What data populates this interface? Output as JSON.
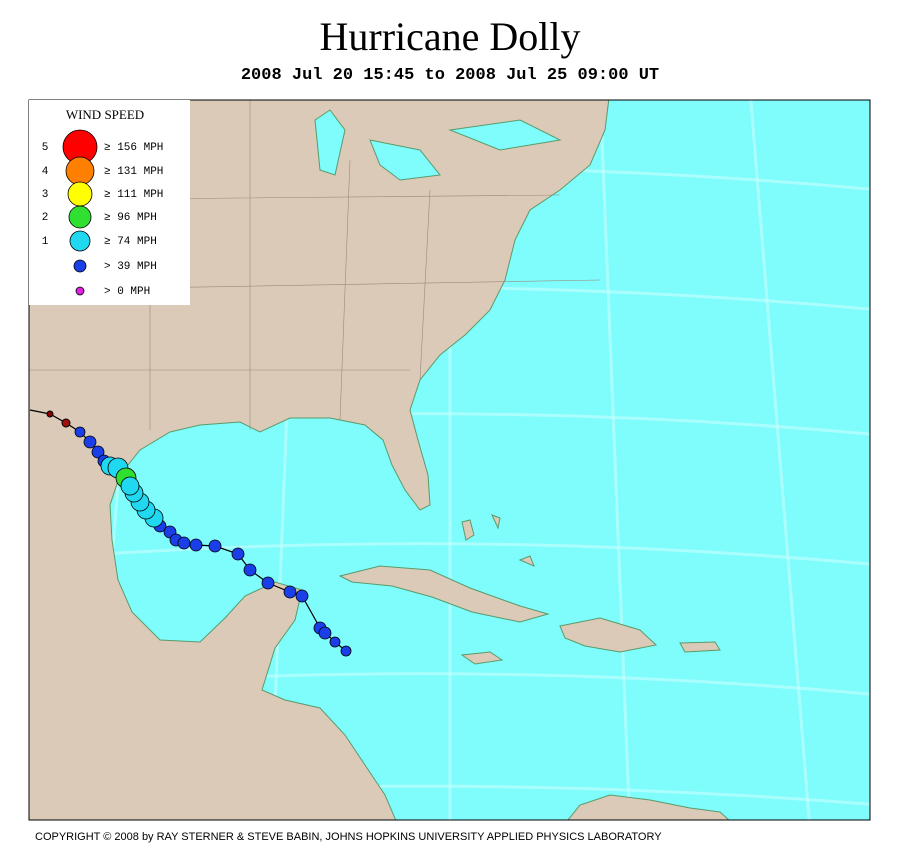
{
  "header": {
    "title": "Hurricane Dolly",
    "subtitle": "2008 Jul 20 15:45 to 2008 Jul 25 09:00 UT"
  },
  "legend": {
    "title": "WIND SPEED",
    "items": [
      {
        "category": "5",
        "label": "≥ 156 MPH",
        "color": "#ff0000"
      },
      {
        "category": "4",
        "label": "≥ 131 MPH",
        "color": "#ff8000"
      },
      {
        "category": "3",
        "label": "≥ 111 MPH",
        "color": "#ffff00"
      },
      {
        "category": "2",
        "label": "≥ 96 MPH",
        "color": "#30e030"
      },
      {
        "category": "1",
        "label": "≥ 74 MPH",
        "color": "#20d8f0"
      },
      {
        "label": "> 39 MPH",
        "color": "#1a3ee8"
      },
      {
        "label": "> 0 MPH",
        "color": "#e020e0"
      }
    ]
  },
  "footer": {
    "copyright": "COPYRIGHT © 2008 by RAY STERNER & STEVE BABIN, JOHNS HOPKINS UNIVERSITY APPLIED PHYSICS LABORATORY"
  }
}
